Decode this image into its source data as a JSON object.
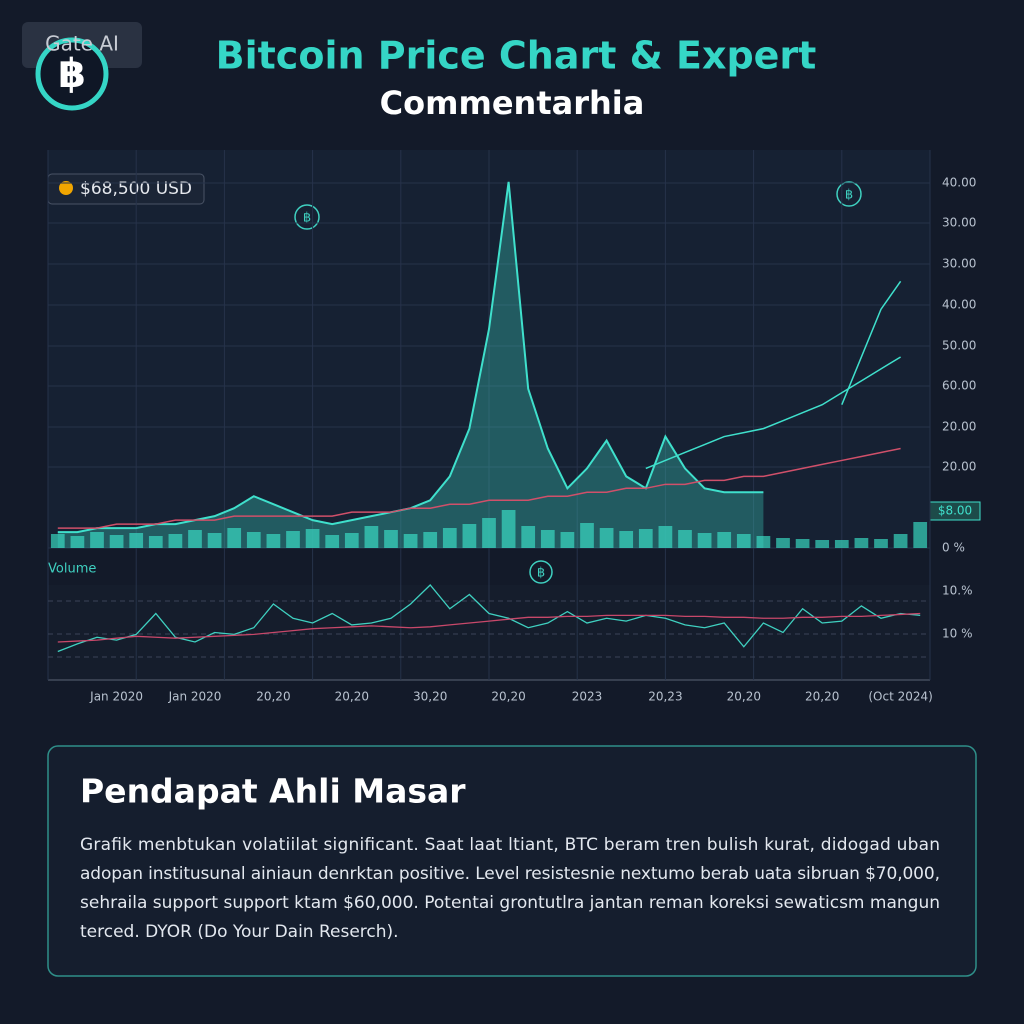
{
  "header": {
    "brand": "Gate AI"
  },
  "chart_data": {
    "type": "line",
    "title": "Bitcoin Price Chart & Expert",
    "subtitle": "Commentarhia",
    "price_badge": "$68,500 USD",
    "last_badge": "$8.00",
    "volume_label": "Volume",
    "categories": [
      null,
      null,
      null,
      "Jan 2020",
      null,
      null,
      null,
      "Jan 2020",
      null,
      null,
      null,
      "20,20",
      null,
      null,
      null,
      "20,20",
      null,
      null,
      null,
      "30,20",
      null,
      null,
      null,
      "20,20",
      null,
      null,
      null,
      "2023",
      null,
      null,
      null,
      "20,23",
      null,
      null,
      null,
      "20,20",
      null,
      null,
      null,
      "20,20",
      null,
      null,
      null,
      "(Oct 2024)",
      null
    ],
    "ylim": [
      0,
      100
    ],
    "y_axis_labels": [
      "40.00",
      "30.00",
      "30.00",
      "40.00",
      "50.00",
      "60.00",
      "20.00",
      "20.00",
      "0 %"
    ],
    "series": [
      {
        "color": "#3fe0cc",
        "fill": true,
        "values": [
          4,
          4,
          5,
          5,
          5,
          6,
          6,
          7,
          8,
          10,
          13,
          11,
          9,
          7,
          6,
          7,
          8,
          9,
          10,
          12,
          18,
          30,
          55,
          92,
          40,
          25,
          15,
          20,
          27,
          18,
          15,
          28,
          20,
          15,
          14,
          14,
          14,
          null,
          null,
          null,
          null,
          null,
          null,
          null,
          null
        ]
      },
      {
        "color": "#3fe0cc",
        "fill": false,
        "values": [
          null,
          null,
          null,
          null,
          null,
          null,
          null,
          null,
          null,
          null,
          null,
          null,
          null,
          null,
          null,
          null,
          null,
          null,
          null,
          null,
          null,
          null,
          null,
          null,
          null,
          null,
          null,
          null,
          null,
          null,
          20,
          22,
          24,
          26,
          28,
          29,
          30,
          32,
          34,
          36,
          39,
          42,
          45,
          48,
          null
        ]
      },
      {
        "color": "#3fe0cc",
        "fill": false,
        "values": [
          null,
          null,
          null,
          null,
          null,
          null,
          null,
          null,
          null,
          null,
          null,
          null,
          null,
          null,
          null,
          null,
          null,
          null,
          null,
          null,
          null,
          null,
          null,
          null,
          null,
          null,
          null,
          null,
          null,
          null,
          null,
          null,
          null,
          null,
          null,
          null,
          null,
          null,
          null,
          null,
          36,
          48,
          60,
          67,
          null
        ]
      },
      {
        "color": "#d0506a",
        "fill": false,
        "values": [
          5,
          5,
          5,
          6,
          6,
          6,
          7,
          7,
          7,
          8,
          8,
          8,
          8,
          8,
          8,
          9,
          9,
          9,
          10,
          10,
          11,
          11,
          12,
          12,
          12,
          13,
          13,
          14,
          14,
          15,
          15,
          16,
          16,
          17,
          17,
          18,
          18,
          19,
          20,
          21,
          22,
          23,
          24,
          25,
          null
        ]
      }
    ],
    "volume": {
      "color": "#36c9b6",
      "ylim": [
        0,
        100
      ],
      "values": [
        14,
        12,
        16,
        13,
        15,
        12,
        14,
        18,
        15,
        20,
        16,
        14,
        17,
        19,
        13,
        15,
        22,
        18,
        14,
        16,
        20,
        24,
        30,
        38,
        22,
        18,
        16,
        25,
        20,
        17,
        19,
        22,
        18,
        15,
        16,
        14,
        12,
        10,
        9,
        8,
        8,
        10,
        9,
        14,
        26
      ]
    },
    "oscillator": {
      "ylim": [
        0,
        100
      ],
      "labels": [
        "10.%",
        "10 %"
      ],
      "series": [
        {
          "color": "#3fd0c0",
          "values": [
            30,
            38,
            45,
            42,
            48,
            70,
            45,
            40,
            50,
            48,
            55,
            80,
            65,
            60,
            70,
            58,
            60,
            65,
            80,
            100,
            75,
            90,
            70,
            65,
            55,
            60,
            72,
            60,
            65,
            62,
            68,
            65,
            58,
            55,
            60,
            35,
            60,
            50,
            75,
            60,
            62,
            78,
            65,
            70,
            68
          ]
        },
        {
          "color": "#c8486a",
          "values": [
            40,
            41,
            42,
            44,
            46,
            45,
            44,
            45,
            46,
            47,
            48,
            50,
            52,
            54,
            55,
            56,
            57,
            56,
            55,
            56,
            58,
            60,
            62,
            64,
            66,
            66,
            67,
            67,
            68,
            68,
            68,
            68,
            67,
            67,
            66,
            66,
            65,
            65,
            66,
            66,
            67,
            67,
            68,
            69,
            70
          ]
        }
      ]
    }
  },
  "commentary": {
    "title": "Pendapat Ahli Masar",
    "lines": [
      "Grafik menbtukan volatiilat significant. Saat laat ltiant, BTC beram tren bulish kurat, didogad uban",
      "adopan institusunal ainiaun denrktan positive. Level resistesnie nextumo berab uata sibruan $70,000,",
      "sehraila support support ktam $60,000. Potentai grontutlra jantan reman koreksi sewaticsm mangun",
      "terced. DYOR (Do Your Dain Reserch)."
    ]
  }
}
